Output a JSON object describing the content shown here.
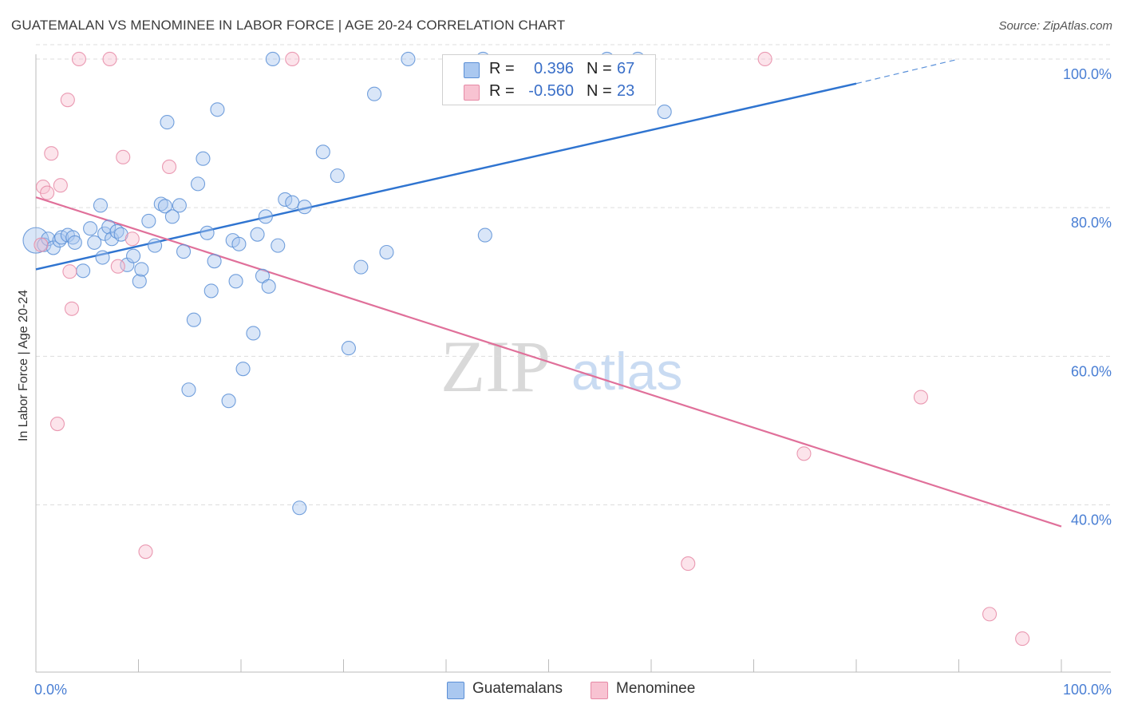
{
  "title": "GUATEMALAN VS MENOMINEE IN LABOR FORCE | AGE 20-24 CORRELATION CHART",
  "source": "Source: ZipAtlas.com",
  "watermark": {
    "zip": "ZIP",
    "atlas": "atlas"
  },
  "legend": {
    "rows": [
      {
        "r_label": "R =",
        "r_value": "0.396",
        "n_label": "N =",
        "n_value": "67"
      },
      {
        "r_label": "R =",
        "r_value": "-0.560",
        "n_label": "N =",
        "n_value": "23"
      }
    ]
  },
  "bottom_legend": [
    "Guatemalans",
    "Menominee"
  ],
  "colors": {
    "guatemalans_fill": "#aac8f0",
    "guatemalans_stroke": "#5b8fd6",
    "guatemalans_line": "#2f74d0",
    "menominee_fill": "#f8c3d2",
    "menominee_stroke": "#e68aa6",
    "menominee_line": "#e0709a",
    "grid": "#dddddd",
    "tick_text": "#4a7fd4"
  },
  "chart_data": {
    "type": "scatter",
    "title": "GUATEMALAN VS MENOMINEE IN LABOR FORCE | AGE 20-24 CORRELATION CHART",
    "xlabel": "",
    "ylabel": "In Labor Force | Age 20-24",
    "xlim": [
      0,
      100
    ],
    "ylim": [
      17.5,
      101.5
    ],
    "x_tick_labels": [
      "0.0%",
      "100.0%"
    ],
    "y_ticks": [
      {
        "value": 40,
        "label": "40.0%"
      },
      {
        "value": 60,
        "label": "60.0%"
      },
      {
        "value": 80,
        "label": "80.0%"
      },
      {
        "value": 100,
        "label": "100.0%"
      }
    ],
    "grid": true,
    "legend_position": "top-center",
    "series": [
      {
        "name": "Guatemalans",
        "trend": {
          "x0": 0,
          "y0": 71.7,
          "x1": 80,
          "y1": 96.7,
          "dashed_to_x": 90,
          "dashed_to_y": 100
        },
        "points": [
          {
            "x": 0.0,
            "y": 75.6,
            "big": true
          },
          {
            "x": 0.8,
            "y": 75.0
          },
          {
            "x": 1.2,
            "y": 75.8
          },
          {
            "x": 1.7,
            "y": 74.6
          },
          {
            "x": 2.3,
            "y": 75.6
          },
          {
            "x": 2.5,
            "y": 76.0
          },
          {
            "x": 3.1,
            "y": 76.3
          },
          {
            "x": 3.6,
            "y": 76.0
          },
          {
            "x": 3.8,
            "y": 75.3
          },
          {
            "x": 4.6,
            "y": 71.5
          },
          {
            "x": 5.3,
            "y": 77.2
          },
          {
            "x": 5.7,
            "y": 75.3
          },
          {
            "x": 6.3,
            "y": 80.3
          },
          {
            "x": 6.5,
            "y": 73.3
          },
          {
            "x": 6.7,
            "y": 76.5
          },
          {
            "x": 7.1,
            "y": 77.4
          },
          {
            "x": 7.4,
            "y": 75.8
          },
          {
            "x": 7.9,
            "y": 76.8
          },
          {
            "x": 8.3,
            "y": 76.4
          },
          {
            "x": 8.9,
            "y": 72.3
          },
          {
            "x": 9.5,
            "y": 73.5
          },
          {
            "x": 10.1,
            "y": 70.1
          },
          {
            "x": 10.3,
            "y": 71.7
          },
          {
            "x": 11.0,
            "y": 78.2
          },
          {
            "x": 11.6,
            "y": 74.9
          },
          {
            "x": 12.2,
            "y": 80.5
          },
          {
            "x": 12.6,
            "y": 80.2
          },
          {
            "x": 12.8,
            "y": 91.5
          },
          {
            "x": 13.3,
            "y": 78.8
          },
          {
            "x": 14.0,
            "y": 80.3
          },
          {
            "x": 14.4,
            "y": 74.1
          },
          {
            "x": 14.9,
            "y": 55.5
          },
          {
            "x": 15.4,
            "y": 64.9
          },
          {
            "x": 15.8,
            "y": 83.2
          },
          {
            "x": 16.3,
            "y": 86.6
          },
          {
            "x": 16.7,
            "y": 76.6
          },
          {
            "x": 17.1,
            "y": 68.8
          },
          {
            "x": 17.4,
            "y": 72.8
          },
          {
            "x": 17.7,
            "y": 93.2
          },
          {
            "x": 18.8,
            "y": 54.0
          },
          {
            "x": 19.2,
            "y": 75.6
          },
          {
            "x": 19.5,
            "y": 70.1
          },
          {
            "x": 19.8,
            "y": 75.1
          },
          {
            "x": 20.2,
            "y": 58.3
          },
          {
            "x": 21.2,
            "y": 63.1
          },
          {
            "x": 21.6,
            "y": 76.4
          },
          {
            "x": 22.1,
            "y": 70.8
          },
          {
            "x": 22.4,
            "y": 78.8
          },
          {
            "x": 22.7,
            "y": 69.4
          },
          {
            "x": 23.1,
            "y": 100.0
          },
          {
            "x": 23.6,
            "y": 74.9
          },
          {
            "x": 24.3,
            "y": 81.1
          },
          {
            "x": 25.0,
            "y": 80.7
          },
          {
            "x": 25.7,
            "y": 39.6
          },
          {
            "x": 26.2,
            "y": 80.1
          },
          {
            "x": 28.0,
            "y": 87.5
          },
          {
            "x": 29.4,
            "y": 84.3
          },
          {
            "x": 30.5,
            "y": 61.1
          },
          {
            "x": 31.7,
            "y": 72.0
          },
          {
            "x": 33.0,
            "y": 95.3
          },
          {
            "x": 34.2,
            "y": 74.0
          },
          {
            "x": 36.3,
            "y": 100.0
          },
          {
            "x": 43.6,
            "y": 100.0
          },
          {
            "x": 43.8,
            "y": 76.3
          },
          {
            "x": 55.7,
            "y": 100.0
          },
          {
            "x": 58.7,
            "y": 100.0
          },
          {
            "x": 61.3,
            "y": 92.9
          }
        ]
      },
      {
        "name": "Menominee",
        "trend": {
          "x0": 0,
          "y0": 81.4,
          "x1": 100,
          "y1": 37.1
        },
        "points": [
          {
            "x": 0.5,
            "y": 75.0
          },
          {
            "x": 0.7,
            "y": 82.8
          },
          {
            "x": 1.1,
            "y": 82.0
          },
          {
            "x": 1.5,
            "y": 87.3
          },
          {
            "x": 2.1,
            "y": 50.9
          },
          {
            "x": 2.4,
            "y": 83.0
          },
          {
            "x": 3.1,
            "y": 94.5
          },
          {
            "x": 3.3,
            "y": 71.4
          },
          {
            "x": 3.5,
            "y": 66.4
          },
          {
            "x": 4.2,
            "y": 100.0
          },
          {
            "x": 7.2,
            "y": 100.0
          },
          {
            "x": 8.0,
            "y": 72.1
          },
          {
            "x": 8.5,
            "y": 86.8
          },
          {
            "x": 9.4,
            "y": 75.8
          },
          {
            "x": 10.7,
            "y": 33.7
          },
          {
            "x": 13.0,
            "y": 85.5
          },
          {
            "x": 25.0,
            "y": 100.0
          },
          {
            "x": 71.1,
            "y": 100.0
          },
          {
            "x": 63.6,
            "y": 32.1
          },
          {
            "x": 74.9,
            "y": 46.9
          },
          {
            "x": 86.3,
            "y": 54.5
          },
          {
            "x": 93.0,
            "y": 25.3
          },
          {
            "x": 96.2,
            "y": 22.0
          }
        ]
      }
    ]
  }
}
